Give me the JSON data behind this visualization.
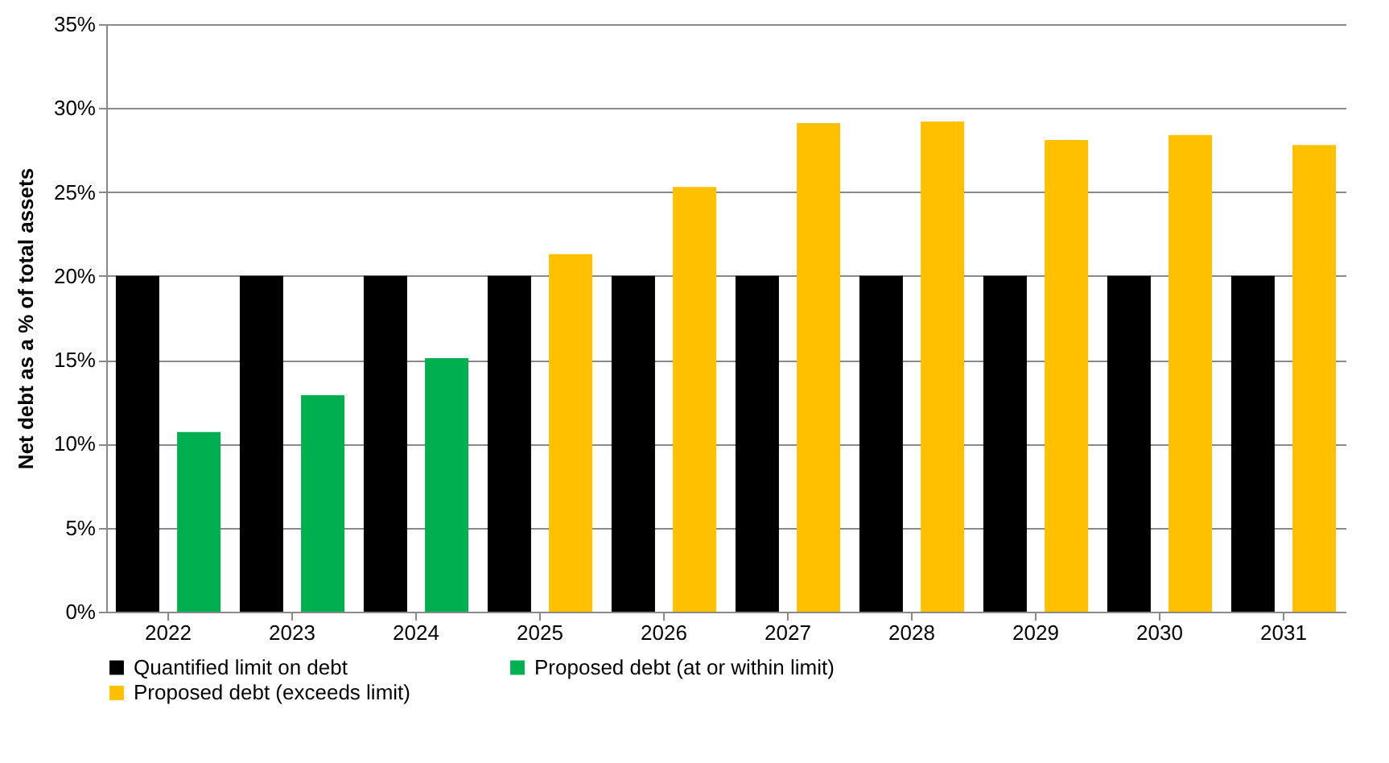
{
  "chart_data": {
    "type": "bar",
    "ylabel": "Net debt as a % of total assets",
    "categories": [
      "2022",
      "2023",
      "2024",
      "2025",
      "2026",
      "2027",
      "2028",
      "2029",
      "2030",
      "2031"
    ],
    "series": [
      {
        "name": "Quantified limit on debt",
        "color": "#000000",
        "values": [
          20,
          20,
          20,
          20,
          20,
          20,
          20,
          20,
          20,
          20
        ]
      },
      {
        "name": "Proposed debt (at or within limit)",
        "color": "#00b050",
        "values": [
          10.7,
          12.9,
          15.1,
          null,
          null,
          null,
          null,
          null,
          null,
          null
        ]
      },
      {
        "name": "Proposed debt (exceeds limit)",
        "color": "#ffc000",
        "values": [
          null,
          null,
          null,
          21.3,
          25.3,
          29.1,
          29.2,
          28.1,
          28.4,
          27.8
        ]
      }
    ],
    "ylim": [
      0,
      35
    ],
    "yticks": [
      {
        "value": 0,
        "label": "0%"
      },
      {
        "value": 5,
        "label": "5%"
      },
      {
        "value": 10,
        "label": "10%"
      },
      {
        "value": 15,
        "label": "15%"
      },
      {
        "value": 20,
        "label": "20%"
      },
      {
        "value": 25,
        "label": "25%"
      },
      {
        "value": 30,
        "label": "30%"
      },
      {
        "value": 35,
        "label": "35%"
      }
    ],
    "grid": "y",
    "legend": "bottom"
  }
}
